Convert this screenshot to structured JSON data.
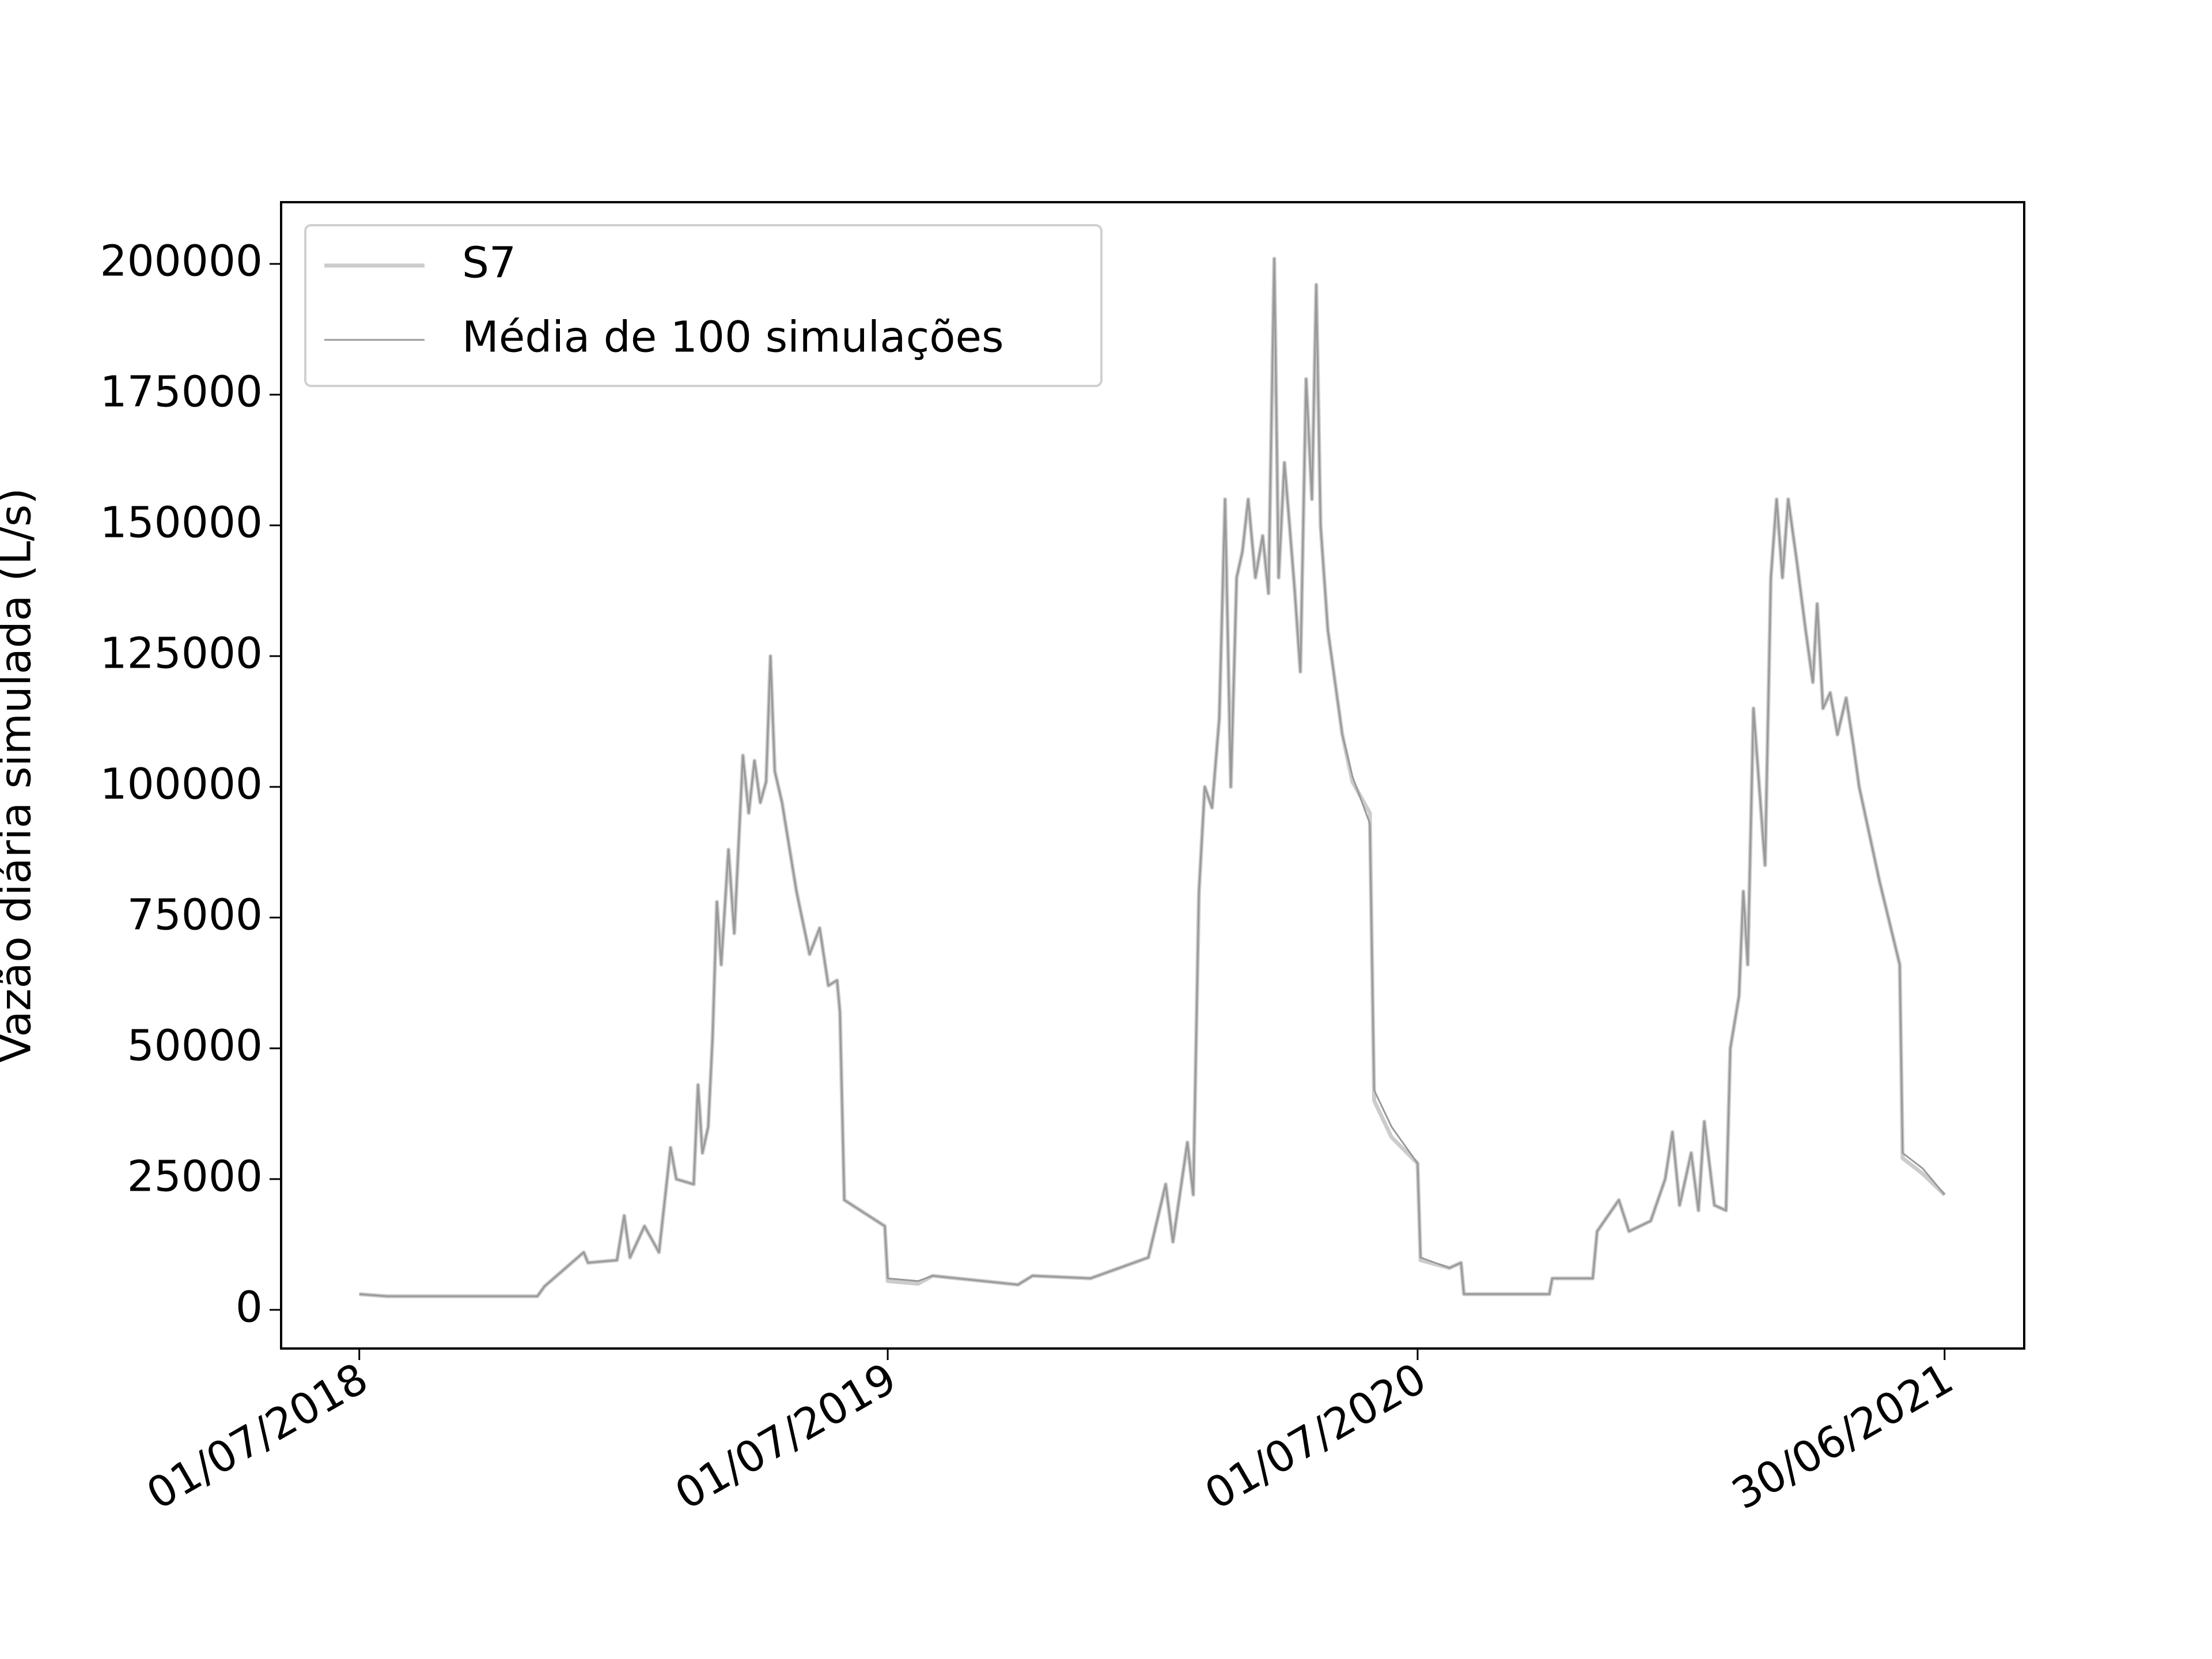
{
  "chart_data": {
    "type": "line",
    "y_label": "Vazão diária simulada (L/s)",
    "x": [
      "2018-07-01",
      "2018-07-20",
      "2018-11-01",
      "2018-11-06",
      "2018-12-03",
      "2018-12-06",
      "2018-12-26",
      "2018-12-31",
      "2019-01-04",
      "2019-01-14",
      "2019-01-24",
      "2019-02-01",
      "2019-02-05",
      "2019-02-17",
      "2019-02-20",
      "2019-02-23",
      "2019-02-27",
      "2019-03-02",
      "2019-03-05",
      "2019-03-08",
      "2019-03-13",
      "2019-03-17",
      "2019-03-23",
      "2019-03-27",
      "2019-03-31",
      "2019-04-04",
      "2019-04-08",
      "2019-04-11",
      "2019-04-14",
      "2019-04-19",
      "2019-04-29",
      "2019-05-08",
      "2019-05-15",
      "2019-05-21",
      "2019-05-27",
      "2019-05-29",
      "2019-06-01",
      "2019-06-29",
      "2019-07-01",
      "2019-07-22",
      "2019-08-01",
      "2019-09-29",
      "2019-10-09",
      "2019-11-18",
      "2019-12-08",
      "2019-12-28",
      "2020-01-09",
      "2020-01-14",
      "2020-01-24",
      "2020-01-28",
      "2020-02-01",
      "2020-02-05",
      "2020-02-10",
      "2020-02-15",
      "2020-02-19",
      "2020-02-23",
      "2020-02-27",
      "2020-03-02",
      "2020-03-06",
      "2020-03-11",
      "2020-03-16",
      "2020-03-20",
      "2020-03-24",
      "2020-03-27",
      "2020-03-31",
      "2020-04-03",
      "2020-04-07",
      "2020-04-11",
      "2020-04-15",
      "2020-04-19",
      "2020-04-22",
      "2020-04-25",
      "2020-04-30",
      "2020-05-10",
      "2020-05-17",
      "2020-05-29",
      "2020-06-01",
      "2020-06-13",
      "2020-07-01",
      "2020-07-03",
      "2020-07-23",
      "2020-07-31",
      "2020-08-02",
      "2020-09-30",
      "2020-10-02",
      "2020-10-30",
      "2020-11-02",
      "2020-11-17",
      "2020-11-24",
      "2020-12-09",
      "2020-12-19",
      "2020-12-24",
      "2020-12-29",
      "2021-01-06",
      "2021-01-11",
      "2021-01-15",
      "2021-01-22",
      "2021-01-30",
      "2021-02-02",
      "2021-02-08",
      "2021-02-11",
      "2021-02-14",
      "2021-02-18",
      "2021-02-22",
      "2021-02-26",
      "2021-03-02",
      "2021-03-06",
      "2021-03-10",
      "2021-03-14",
      "2021-03-20",
      "2021-03-26",
      "2021-03-31",
      "2021-04-03",
      "2021-04-07",
      "2021-04-12",
      "2021-04-17",
      "2021-04-23",
      "2021-04-28",
      "2021-05-02",
      "2021-05-16",
      "2021-05-30",
      "2021-06-01",
      "2021-06-15",
      "2021-06-30"
    ],
    "series": [
      {
        "name": "S7",
        "color": "#cccccc",
        "values": [
          3000,
          2600,
          2600,
          4500,
          11000,
          9000,
          9500,
          18000,
          10000,
          16000,
          11000,
          31000,
          25000,
          24000,
          43000,
          30000,
          35000,
          52000,
          78000,
          66000,
          88000,
          72000,
          106000,
          95000,
          105000,
          97000,
          101000,
          125000,
          103000,
          97000,
          80000,
          68000,
          73000,
          62000,
          63000,
          57000,
          21000,
          16000,
          5500,
          5000,
          6500,
          4800,
          6500,
          6000,
          8000,
          10000,
          24000,
          13000,
          32000,
          22000,
          80000,
          100000,
          96000,
          113000,
          155000,
          100000,
          140000,
          145000,
          155000,
          140000,
          148000,
          137000,
          201000,
          140000,
          162000,
          152000,
          138000,
          122000,
          178000,
          155000,
          196000,
          150000,
          130000,
          110000,
          101000,
          95000,
          40000,
          33000,
          28000,
          9500,
          8000,
          9000,
          3000,
          3000,
          6000,
          6000,
          15000,
          21000,
          15000,
          17000,
          25000,
          34000,
          20000,
          30000,
          19000,
          36000,
          20000,
          19000,
          50000,
          60000,
          80000,
          66000,
          115000,
          100000,
          85000,
          140000,
          155000,
          140000,
          155000,
          143000,
          130000,
          120000,
          135000,
          115000,
          118000,
          110000,
          117000,
          108000,
          100000,
          82000,
          66000,
          29000,
          26000,
          22000
        ]
      },
      {
        "name": "Média de 100 simulações",
        "color": "#999999",
        "values": [
          3000,
          2600,
          2600,
          4500,
          11000,
          9000,
          9500,
          18000,
          10000,
          16000,
          11000,
          31000,
          25000,
          24000,
          43000,
          30000,
          35000,
          52000,
          78000,
          66000,
          88000,
          72000,
          106000,
          95000,
          105000,
          97000,
          101000,
          125000,
          103000,
          97000,
          80000,
          68000,
          73000,
          62000,
          63000,
          57000,
          21000,
          16000,
          6000,
          5500,
          6500,
          4800,
          6500,
          6000,
          8000,
          10000,
          24000,
          13000,
          32000,
          22000,
          80000,
          100000,
          96000,
          113000,
          155000,
          100000,
          140000,
          145000,
          155000,
          140000,
          148000,
          137000,
          201000,
          140000,
          162000,
          152000,
          138000,
          122000,
          178000,
          155000,
          196000,
          150000,
          130000,
          110000,
          102000,
          93000,
          42000,
          35000,
          28000,
          10000,
          8000,
          9000,
          3000,
          3000,
          6000,
          6000,
          15000,
          21000,
          15000,
          17000,
          25000,
          34000,
          20000,
          30000,
          19000,
          36000,
          20000,
          19000,
          50000,
          60000,
          80000,
          66000,
          115000,
          100000,
          85000,
          140000,
          155000,
          140000,
          155000,
          143000,
          130000,
          120000,
          135000,
          115000,
          118000,
          110000,
          117000,
          108000,
          100000,
          82000,
          66000,
          30000,
          27000,
          22000
        ]
      }
    ],
    "xlim": [
      "2018-05-08",
      "2021-08-24"
    ],
    "xticks": [
      {
        "value": "2018-07-01",
        "label": "01/07/2018"
      },
      {
        "value": "2019-07-01",
        "label": "01/07/2019"
      },
      {
        "value": "2020-07-01",
        "label": "01/07/2020"
      },
      {
        "value": "2021-06-30",
        "label": "30/06/2021"
      }
    ],
    "ylim": [
      -7400,
      211800
    ],
    "yticks": [
      0,
      25000,
      50000,
      75000,
      100000,
      125000,
      150000,
      175000,
      200000
    ],
    "grid": false,
    "legend": "upper left"
  }
}
